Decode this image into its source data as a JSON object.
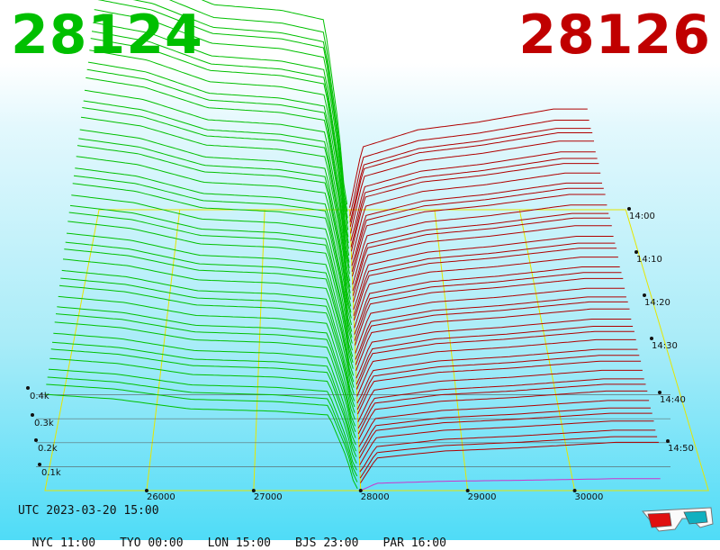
{
  "prices": {
    "bid": "28124",
    "ask": "28126"
  },
  "colors": {
    "bid": "#00bf00",
    "ask": "#c00000",
    "bid_line": "#00c000",
    "ask_line": "#b00000",
    "grid": "#e6e600",
    "latest_ask": "#cc33cc",
    "reference_line": "#555555"
  },
  "clock": {
    "utc": "UTC 2023-03-20 15:00",
    "zones": [
      {
        "label": "NYC 11:00"
      },
      {
        "label": "TYO 00:00"
      },
      {
        "label": "LON 15:00"
      },
      {
        "label": "BJS 23:00"
      },
      {
        "label": "PAR 16:00"
      }
    ]
  },
  "icons": {
    "glasses": "3d-glasses-icon"
  },
  "chart_data": {
    "type": "area",
    "description_kind": "3d-order-book-depth",
    "x_axis": {
      "ticks": [
        {
          "value": 26000,
          "label": "26000"
        },
        {
          "value": 27000,
          "label": "27000"
        },
        {
          "value": 28000,
          "label": "28000"
        },
        {
          "value": 29000,
          "label": "29000"
        },
        {
          "value": 30000,
          "label": "30000"
        }
      ],
      "range": [
        25050,
        31250
      ]
    },
    "depth_axis": {
      "ticks": [
        {
          "value": 100,
          "label": "0.1k"
        },
        {
          "value": 200,
          "label": "0.2k"
        },
        {
          "value": 300,
          "label": "0.3k"
        },
        {
          "value": 400,
          "label": "0.4k"
        }
      ]
    },
    "time_axis": {
      "ticks": [
        {
          "label": "14:00"
        },
        {
          "label": "14:10"
        },
        {
          "label": "14:20"
        },
        {
          "label": "14:30"
        },
        {
          "label": "14:40"
        },
        {
          "label": "14:50"
        }
      ],
      "range": [
        "14:00",
        "15:00"
      ]
    },
    "series": [
      {
        "name": "bids",
        "points": [
          [
            25050,
            630
          ],
          [
            25700,
            600
          ],
          [
            26400,
            535
          ],
          [
            27200,
            520
          ],
          [
            27700,
            495
          ],
          [
            28000,
            0
          ]
        ]
      },
      {
        "name": "asks",
        "points": [
          [
            28000,
            0
          ],
          [
            28150,
            160
          ],
          [
            28800,
            205
          ],
          [
            29500,
            225
          ],
          [
            30400,
            260
          ],
          [
            30800,
            260
          ]
        ]
      }
    ],
    "grid": true
  }
}
